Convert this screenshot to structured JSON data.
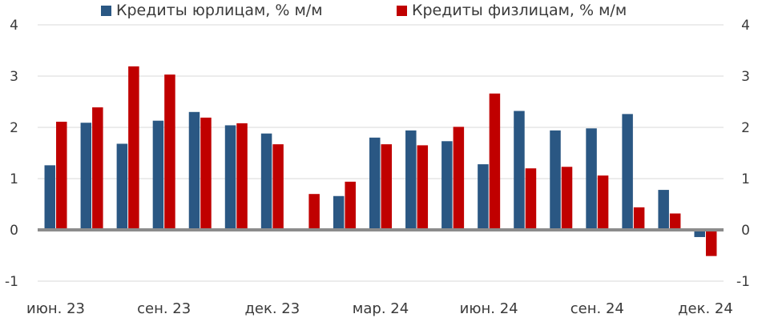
{
  "chart_data": {
    "type": "bar",
    "title": "",
    "xlabel": "",
    "ylabel": "",
    "ylim": [
      -1,
      4
    ],
    "yticks": [
      -1,
      0,
      1,
      2,
      3,
      4
    ],
    "grid": true,
    "legend_position": "top",
    "categories": [
      "июн. 23",
      "июл. 23",
      "авг. 23",
      "сен. 23",
      "окт. 23",
      "ноя. 23",
      "дек. 23",
      "янв. 24",
      "фев. 24",
      "мар. 24",
      "апр. 24",
      "май 24",
      "июн. 24",
      "июл. 24",
      "авг. 24",
      "сен. 24",
      "окт. 24",
      "ноя. 24",
      "дек. 24"
    ],
    "tick_labels": [
      "июн. 23",
      "",
      "",
      "сен. 23",
      "",
      "",
      "дек. 23",
      "",
      "",
      "мар. 24",
      "",
      "",
      "июн. 24",
      "",
      "",
      "сен. 24",
      "",
      "",
      "дек. 24"
    ],
    "series": [
      {
        "name": "Кредиты юрлицам, % м/м",
        "color": "#2a5783",
        "values": [
          1.26,
          2.09,
          1.68,
          2.13,
          2.3,
          2.04,
          1.88,
          0.0,
          0.66,
          1.8,
          1.94,
          1.73,
          1.28,
          2.32,
          1.94,
          1.98,
          2.26,
          0.78,
          -0.14
        ]
      },
      {
        "name": "Кредиты физлицам, % м/м",
        "color": "#c00000",
        "values": [
          2.11,
          2.39,
          3.19,
          3.03,
          2.19,
          2.08,
          1.67,
          0.7,
          0.94,
          1.67,
          1.65,
          2.01,
          2.66,
          1.2,
          1.23,
          1.06,
          0.44,
          0.32,
          -0.51
        ]
      }
    ]
  }
}
